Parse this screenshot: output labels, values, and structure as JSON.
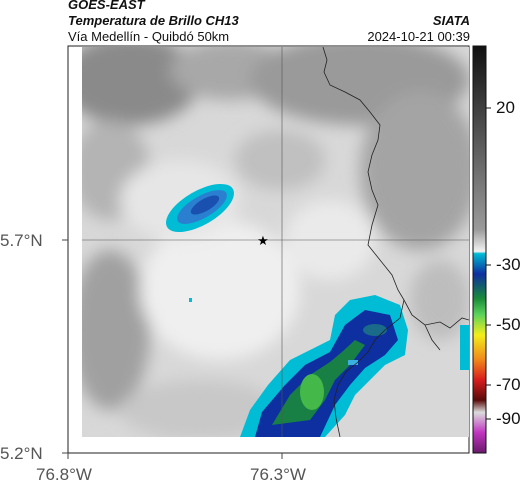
{
  "header": {
    "satellite": "GOES-EAST",
    "product": "Temperatura de Brillo CH13",
    "region": "Vía Medellín - Quibdó 50km",
    "org": "SIATA",
    "timestamp": "2024-10-21 00:39"
  },
  "axes": {
    "y_ticks": [
      "5.7°N",
      "5.2°N"
    ],
    "x_ticks": [
      "76.8°W",
      "76.3°W"
    ]
  },
  "colorbar": {
    "ticks": [
      "20",
      "-30",
      "-50",
      "-70",
      "-90"
    ],
    "colors": {
      "dark": "#111111",
      "gray": "#9a9a9a",
      "light": "#eeeeee",
      "cyan": "#00bcd4",
      "blue": "#0d2fa0",
      "green": "#1a8a3a",
      "yellow": "#f2ee1a",
      "orange": "#f08a1a",
      "red": "#d81e1e",
      "maroon": "#5a0a0a",
      "magenta": "#c034c0"
    }
  },
  "map": {
    "marker_icon": "star-icon"
  }
}
